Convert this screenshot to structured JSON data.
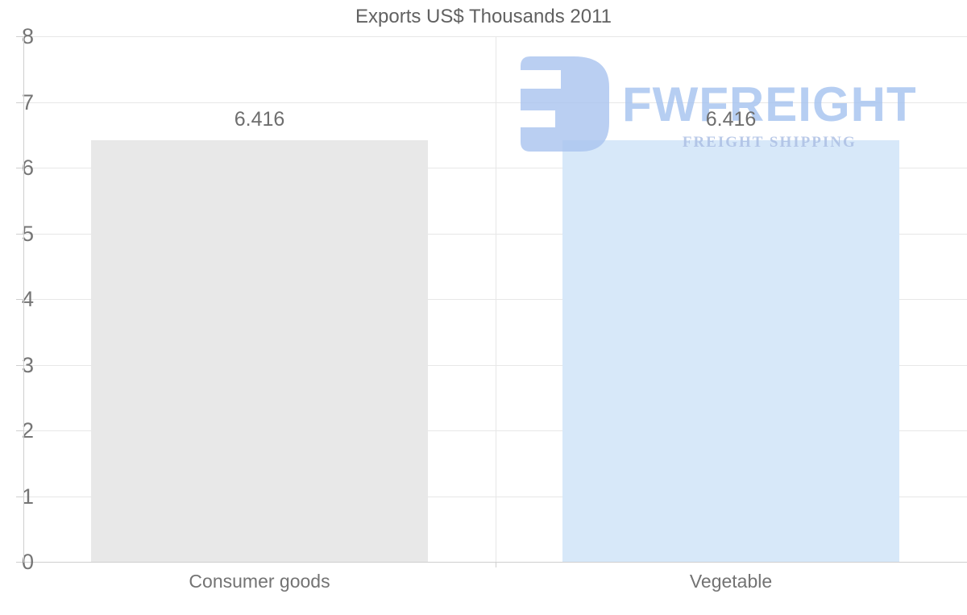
{
  "title": "Exports US$ Thousands 2011",
  "chart_data": {
    "type": "bar",
    "title": "Exports US$ Thousands 2011",
    "categories": [
      "Consumer goods",
      "Vegetable"
    ],
    "values": [
      6.416,
      6.416
    ],
    "value_labels": [
      "6.416",
      "6.416"
    ],
    "series": [
      {
        "name": "Exports US$ Thousands 2011",
        "values": [
          6.416,
          6.416
        ]
      }
    ],
    "xlabel": "",
    "ylabel": "",
    "ylim": [
      0,
      8
    ],
    "yticks": [
      0,
      1,
      2,
      3,
      4,
      5,
      6,
      7,
      8
    ],
    "grid": true,
    "legend_position": "none",
    "bar_colors": [
      "#e8e8e8",
      "#d7e8f9"
    ]
  },
  "watermark": {
    "wordmark": "FWFREIGHT",
    "subtitle": "FREIGHT SHIPPING",
    "icon": "fwfreight-logo-icon",
    "icon_color": "#a9c4f0",
    "wordmark_color": "#a5c2f0",
    "subtitle_color": "#a9bde3"
  },
  "colors": {
    "background": "#ffffff",
    "grid_line": "#e7e7e7",
    "axis_line": "#cfcfcf",
    "title_text": "#616161",
    "axis_text": "#757575",
    "value_text": "#6e6e6e",
    "category_text": "#737373"
  }
}
